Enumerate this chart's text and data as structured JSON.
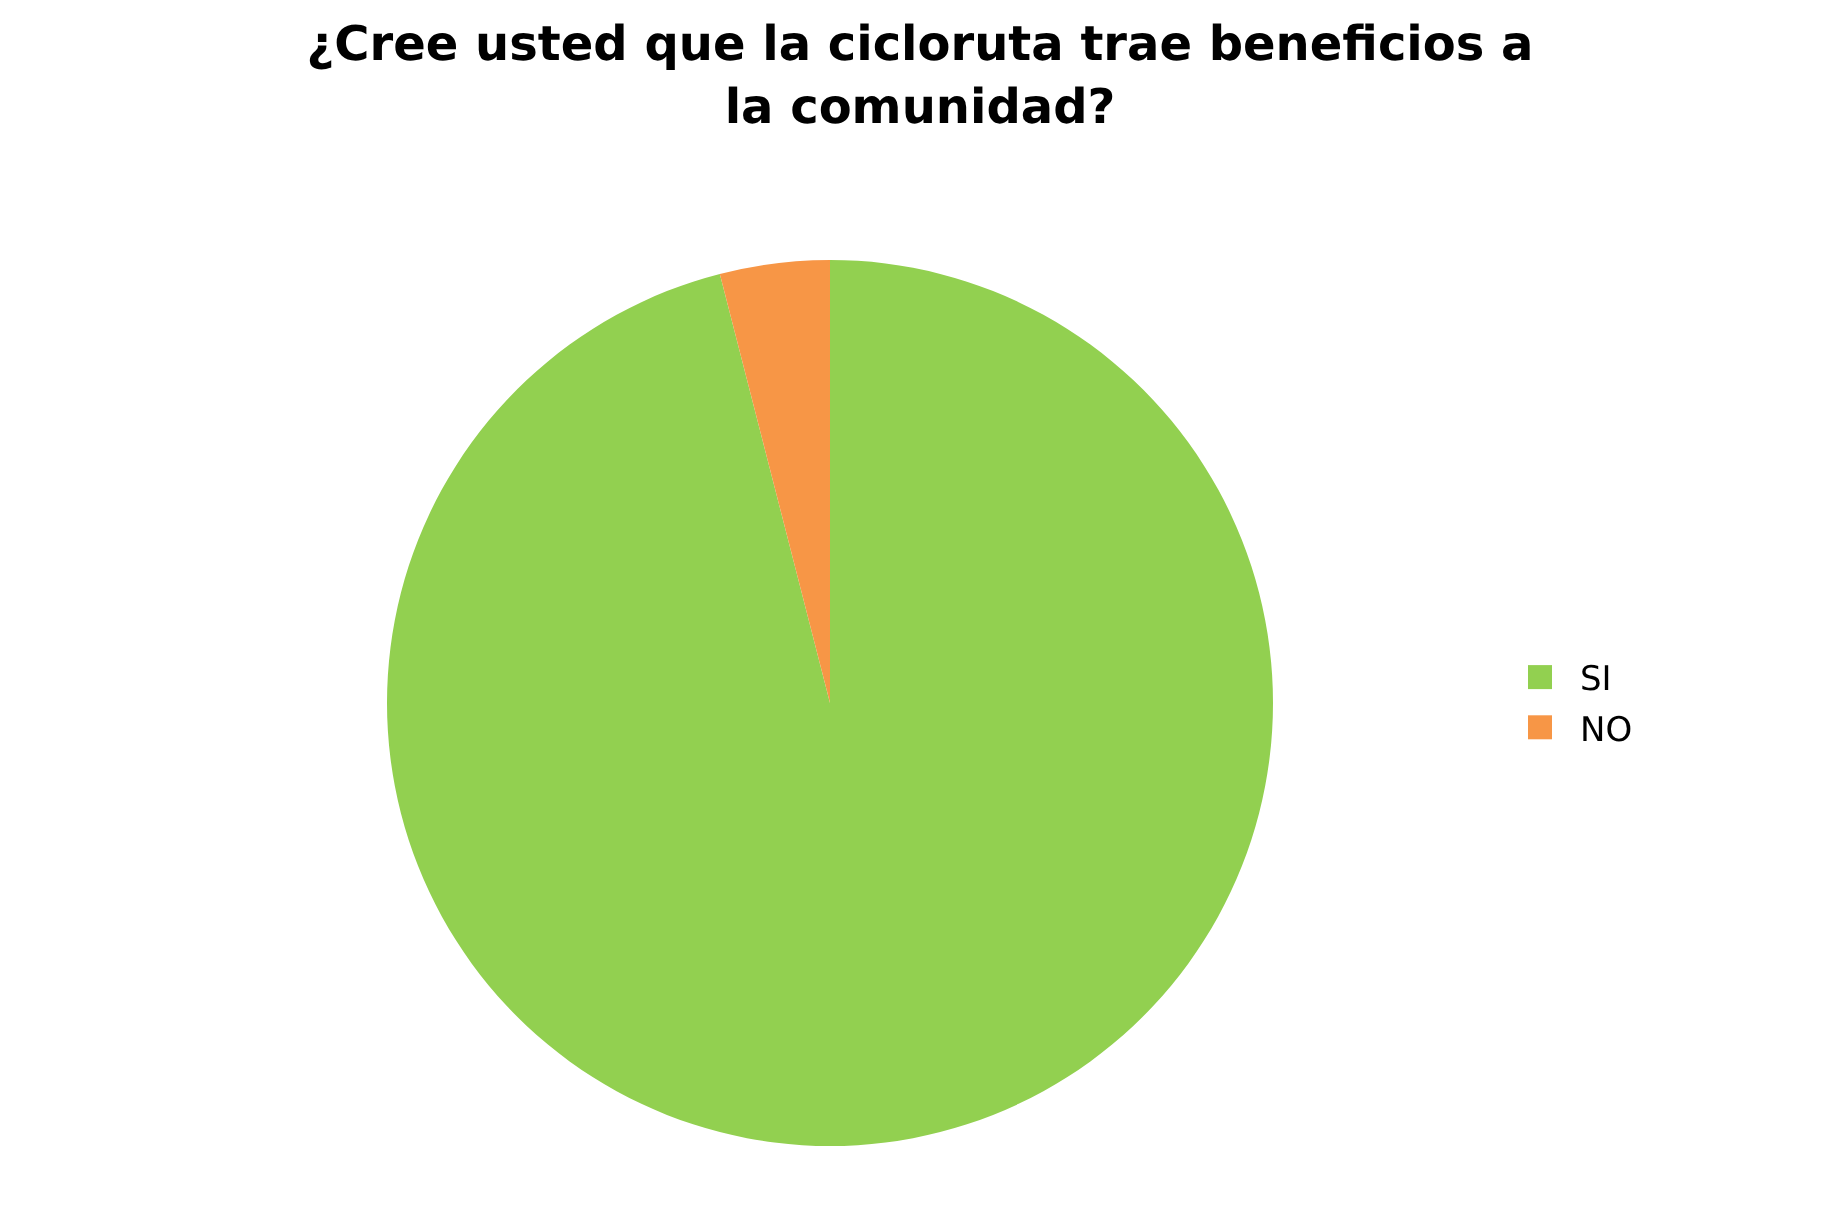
{
  "chart_data": {
    "type": "pie",
    "title": "¿Cree usted que la cicloruta trae beneficios a la comunidad?",
    "categories": [
      "SI",
      "NO"
    ],
    "values": [
      96,
      4
    ],
    "colors": [
      "#92d050",
      "#f79646"
    ],
    "legend": "right"
  }
}
